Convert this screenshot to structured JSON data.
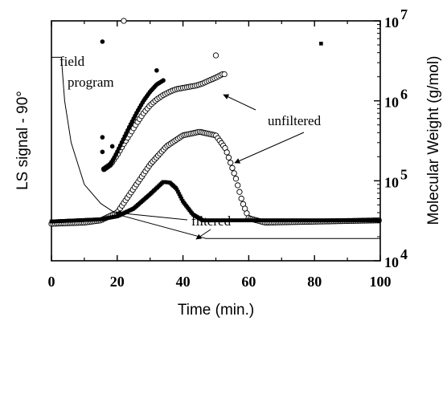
{
  "chart_data": {
    "type": "scatter",
    "xlabel": "Time (min.)",
    "ylabel_left": "LS signal - 90°",
    "ylabel_right": "Molecular Weight (g/mol)",
    "xlim": [
      0,
      100
    ],
    "x_ticks": [
      0,
      20,
      40,
      60,
      80,
      100
    ],
    "x_tick_labels": [
      "0",
      "20",
      "40",
      "60",
      "80",
      "100"
    ],
    "y_right_scale": "log",
    "y_right_lim": [
      10000,
      10000000
    ],
    "y_right_ticks": [
      10000,
      100000,
      1000000,
      10000000
    ],
    "y_right_tick_labels": [
      {
        "base": "10",
        "exp": "4"
      },
      {
        "base": "10",
        "exp": "5"
      },
      {
        "base": "10",
        "exp": "6"
      },
      {
        "base": "10",
        "exp": "7"
      }
    ],
    "y_left_ticks_labeled": false,
    "annotations": {
      "field_program": [
        "field",
        "program"
      ],
      "unfiltered": "unfiltered",
      "filtered": "filtered"
    },
    "series": [
      {
        "name": "unfiltered",
        "marker": "open-circle",
        "axis": "left",
        "description_points": [
          [
            0,
            29000
          ],
          [
            10,
            30000
          ],
          [
            15,
            32000
          ],
          [
            20,
            40000
          ],
          [
            25,
            80000
          ],
          [
            30,
            160000
          ],
          [
            35,
            270000
          ],
          [
            40,
            370000
          ],
          [
            45,
            410000
          ],
          [
            50,
            370000
          ],
          [
            53,
            250000
          ],
          [
            56,
            110000
          ],
          [
            58,
            55000
          ],
          [
            60,
            34000
          ],
          [
            65,
            30000
          ],
          [
            100,
            32000
          ]
        ]
      },
      {
        "name": "filtered",
        "marker": "filled-square",
        "axis": "left",
        "description_points": [
          [
            0,
            31000
          ],
          [
            15,
            33000
          ],
          [
            20,
            36000
          ],
          [
            25,
            45000
          ],
          [
            30,
            68000
          ],
          [
            34,
            97000
          ],
          [
            36,
            95000
          ],
          [
            38,
            80000
          ],
          [
            40,
            55000
          ],
          [
            43,
            38000
          ],
          [
            46,
            32000
          ],
          [
            100,
            32000
          ]
        ]
      },
      {
        "name": "unfiltered",
        "marker": "open-circle",
        "axis": "right",
        "points": [
          [
            16,
            140000
          ],
          [
            18,
            160000
          ],
          [
            20,
            210000
          ],
          [
            22,
            290000
          ],
          [
            24,
            390000
          ],
          [
            26,
            530000
          ],
          [
            28,
            700000
          ],
          [
            30,
            880000
          ],
          [
            32,
            1040000
          ],
          [
            34,
            1180000
          ],
          [
            36,
            1300000
          ],
          [
            38,
            1400000
          ],
          [
            40,
            1450000
          ],
          [
            42,
            1500000
          ],
          [
            44,
            1550000
          ],
          [
            46,
            1650000
          ],
          [
            48,
            1800000
          ],
          [
            50,
            1950000
          ],
          [
            52,
            2150000
          ],
          [
            53,
            2150000
          ]
        ]
      },
      {
        "name": "filtered",
        "marker": "filled-circle",
        "axis": "right",
        "points": [
          [
            16,
            140000
          ],
          [
            18,
            160000
          ],
          [
            20,
            230000
          ],
          [
            22,
            340000
          ],
          [
            24,
            500000
          ],
          [
            26,
            720000
          ],
          [
            28,
            1000000
          ],
          [
            30,
            1300000
          ],
          [
            32,
            1600000
          ],
          [
            34,
            1800000
          ]
        ]
      },
      {
        "name": "field program",
        "marker": "line",
        "axis": "left",
        "description_points": [
          [
            0,
            3500000
          ],
          [
            3,
            3500000
          ],
          [
            4,
            1000000
          ],
          [
            6,
            300000
          ],
          [
            10,
            90000
          ],
          [
            15,
            52000
          ],
          [
            20,
            38000
          ],
          [
            47,
            19000
          ],
          [
            100,
            19000
          ]
        ]
      }
    ],
    "outliers": [
      {
        "marker": "filled-circle",
        "x": 15.5,
        "y": 5500000
      },
      {
        "marker": "filled-circle",
        "x": 32,
        "y": 2400000
      },
      {
        "marker": "filled-circle",
        "x": 15.5,
        "y": 350000
      },
      {
        "marker": "filled-circle",
        "x": 15.5,
        "y": 230000
      },
      {
        "marker": "filled-circle",
        "x": 18.5,
        "y": 270000
      },
      {
        "marker": "open-circle",
        "x": 22,
        "y": 10000000
      },
      {
        "marker": "open-circle",
        "x": 50,
        "y": 3700000
      },
      {
        "marker": "filled-square",
        "x": 82,
        "y": 5200000
      }
    ]
  }
}
